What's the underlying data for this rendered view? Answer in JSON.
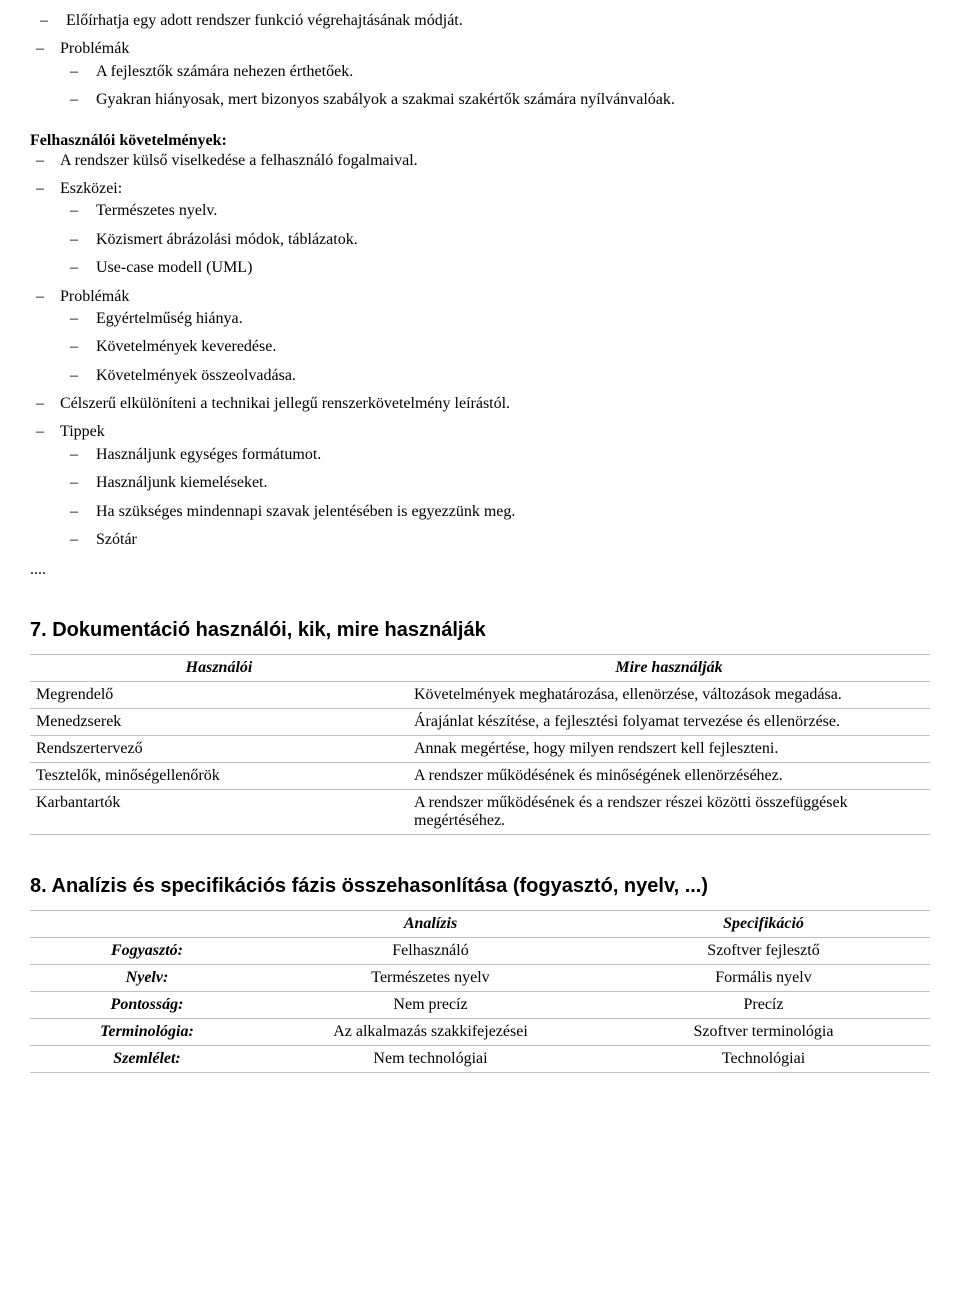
{
  "intro_l2": [
    "Előírhatja egy adott rendszer funkció végrehajtásának módját."
  ],
  "intro_l1": "Problémák",
  "intro_l1_sub": [
    "A fejlesztők számára nehezen érthetőek.",
    "Gyakran hiányosak, mert bizonyos szabályok a szakmai szakértők számára nyílvánvalóak."
  ],
  "section_user_req_title": "Felhasználói követelmények:",
  "user_req": [
    {
      "text": "A rendszer külső viselkedése a felhasználó fogalmaival."
    },
    {
      "text": "Eszközei:",
      "children": [
        "Természetes nyelv.",
        "Közismert ábrázolási módok, táblázatok.",
        "Use-case modell (UML)"
      ]
    },
    {
      "text": "Problémák",
      "children": [
        "Egyértelműség hiánya.",
        "Követelmények keveredése.",
        "Követelmények összeolvadása."
      ]
    },
    {
      "text": "Célszerű elkülöníteni a technikai jellegű renszerkövetelmény leírástól."
    },
    {
      "text": "Tippek",
      "children": [
        "Használjunk egységes formátumot.",
        "Használjunk kiemeléseket.",
        "Ha szükséges mindennapi szavak jelentésében is egyezzünk meg.",
        "Szótár"
      ]
    }
  ],
  "ellipsis": "....",
  "h7": "7. Dokumentáció használói, kik, mire használják",
  "table1": {
    "headers": [
      "Használói",
      "Mire használják"
    ],
    "rows": [
      [
        "Megrendelő",
        "Követelmények meghatározása, ellenörzése, változások megadása."
      ],
      [
        "Menedzserek",
        "Árajánlat készítése, a fejlesztési folyamat tervezése és ellenörzése."
      ],
      [
        "Rendszertervező",
        "Annak megértése, hogy milyen rendszert kell fejleszteni."
      ],
      [
        "Tesztelők, minőségellenőrök",
        "A rendszer működésének és minőségének ellenörzéséhez."
      ],
      [
        "Karbantartók",
        "A rendszer működésének és a rendszer részei közötti összefüggések megértéséhez."
      ]
    ]
  },
  "h8": "8. Analízis és specifikációs fázis összehasonlítása (fogyasztó, nyelv, ...)",
  "table2": {
    "headers": [
      "",
      "Analízis",
      "Specifikáció"
    ],
    "rows": [
      [
        "Fogyasztó:",
        "Felhasználó",
        "Szoftver fejlesztő"
      ],
      [
        "Nyelv:",
        "Természetes nyelv",
        "Formális nyelv"
      ],
      [
        "Pontosság:",
        "Nem precíz",
        "Precíz"
      ],
      [
        "Terminológia:",
        "Az alkalmazás szakkifejezései",
        "Szoftver terminológia"
      ],
      [
        "Szemlélet:",
        "Nem technológiai",
        "Technológiai"
      ]
    ]
  }
}
